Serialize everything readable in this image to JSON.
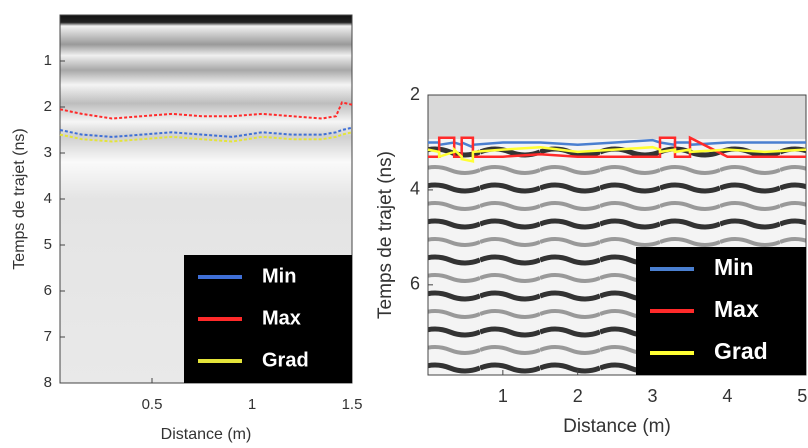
{
  "chart_data": [
    {
      "type": "line",
      "xlabel": "Distance (m)",
      "ylabel": "Temps de trajet (ns)",
      "xlim": [
        0.04,
        1.5
      ],
      "xticks": [
        0.5,
        1,
        1.5
      ],
      "ylim": [
        0,
        8
      ],
      "yticks": [
        1,
        2,
        3,
        4,
        5,
        6,
        7,
        8
      ],
      "y_reversed": true,
      "line_style": "dotted",
      "legend": "lower right",
      "x": [
        0.04,
        0.15,
        0.3,
        0.45,
        0.6,
        0.75,
        0.9,
        1.05,
        1.2,
        1.35,
        1.42,
        1.45,
        1.5
      ],
      "series": [
        {
          "name": "Min",
          "color": "#3f6fd6",
          "values": [
            2.5,
            2.6,
            2.65,
            2.6,
            2.55,
            2.6,
            2.65,
            2.55,
            2.6,
            2.6,
            2.55,
            2.5,
            2.45
          ]
        },
        {
          "name": "Max",
          "color": "#ff2a2a",
          "values": [
            2.05,
            2.15,
            2.25,
            2.2,
            2.15,
            2.2,
            2.2,
            2.15,
            2.2,
            2.25,
            2.2,
            1.9,
            1.95
          ]
        },
        {
          "name": "Grad",
          "color": "#e4e43a",
          "values": [
            2.6,
            2.7,
            2.75,
            2.7,
            2.65,
            2.7,
            2.75,
            2.65,
            2.7,
            2.7,
            2.65,
            2.6,
            2.55
          ]
        }
      ]
    },
    {
      "type": "line",
      "xlabel": "Distance (m)",
      "ylabel": "Temps de trajet (ns)",
      "xlim": [
        0,
        5.05
      ],
      "xticks": [
        1,
        2,
        3,
        4,
        5
      ],
      "ylim": [
        2,
        7.9
      ],
      "yticks": [
        2,
        4,
        6
      ],
      "y_reversed": true,
      "line_style": "solid",
      "legend": "lower right",
      "x": [
        0,
        0.15,
        0.15,
        0.35,
        0.35,
        0.45,
        0.45,
        0.6,
        0.6,
        1.0,
        1.5,
        2.0,
        2.5,
        3.0,
        3.1,
        3.1,
        3.3,
        3.3,
        3.5,
        3.5,
        4.0,
        4.5,
        5.05
      ],
      "series": [
        {
          "name": "Min",
          "color": "#4a7fd0",
          "values": [
            3.0,
            3.0,
            3.05,
            3.0,
            3.0,
            3.05,
            3.0,
            3.1,
            3.05,
            3.0,
            3.0,
            3.05,
            3.0,
            2.95,
            3.0,
            3.0,
            3.05,
            3.0,
            3.0,
            3.05,
            3.0,
            3.0,
            3.0
          ]
        },
        {
          "name": "Max",
          "color": "#ff2a2a",
          "values": [
            3.3,
            3.3,
            2.9,
            2.9,
            3.3,
            3.3,
            2.9,
            2.9,
            3.3,
            3.3,
            3.25,
            3.3,
            3.3,
            3.3,
            3.3,
            2.9,
            2.9,
            3.3,
            3.3,
            2.9,
            3.3,
            3.3,
            3.3
          ]
        },
        {
          "name": "Grad",
          "color": "#ffff33",
          "values": [
            3.15,
            3.2,
            3.3,
            3.2,
            3.15,
            3.3,
            3.35,
            3.4,
            3.2,
            3.15,
            3.1,
            3.2,
            3.15,
            3.1,
            3.15,
            3.2,
            3.15,
            3.2,
            3.15,
            3.2,
            3.15,
            3.2,
            3.15
          ]
        }
      ]
    }
  ]
}
